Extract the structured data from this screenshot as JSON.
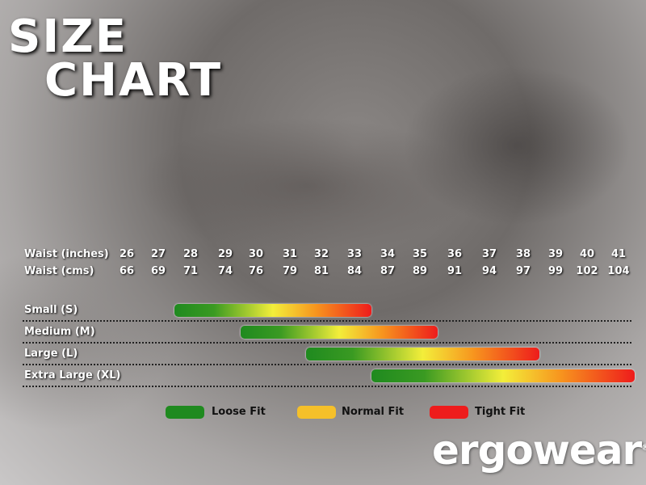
{
  "title_line1": "SIZE",
  "title_line2": "CHART",
  "chart_data": {
    "type": "range-bar",
    "rows": [
      {
        "label": "Waist (inches)",
        "values": [
          26,
          27,
          28,
          29,
          30,
          31,
          32,
          33,
          34,
          35,
          36,
          37,
          38,
          39,
          40,
          41
        ]
      },
      {
        "label": "Waist (cms)",
        "values": [
          66,
          69,
          71,
          74,
          76,
          79,
          81,
          84,
          87,
          89,
          91,
          94,
          97,
          99,
          102,
          104
        ]
      }
    ],
    "sizes": [
      {
        "label": "Small (S)",
        "start_in": 27.5,
        "end_in": 33.5
      },
      {
        "label": "Medium (M)",
        "start_in": 29.5,
        "end_in": 35.5
      },
      {
        "label": "Large (L)",
        "start_in": 31.5,
        "end_in": 38.5
      },
      {
        "label": "Extra Large (XL)",
        "start_in": 33.5,
        "end_in": 41.5
      }
    ],
    "legend": [
      {
        "label": "Loose Fit",
        "color": "#1f8a1f"
      },
      {
        "label": "Normal Fit",
        "color": "#f5c02a"
      },
      {
        "label": "Tight Fit",
        "color": "#ee1c1c"
      }
    ]
  },
  "brand": "ergowear",
  "registered": "®"
}
